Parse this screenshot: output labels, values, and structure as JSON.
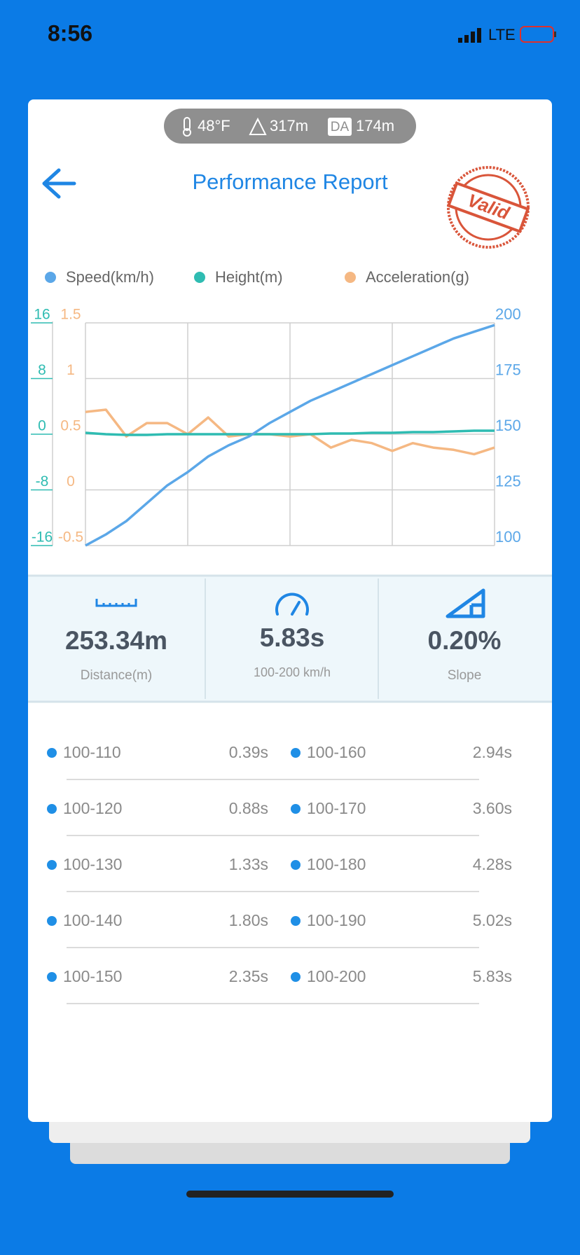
{
  "status_bar": {
    "time": "8:56",
    "network": "LTE"
  },
  "conditions": {
    "temperature": "48°F",
    "altitude": "317m",
    "da_label": "DA",
    "density_altitude": "174m"
  },
  "header": {
    "title": "Performance Report",
    "stamp": "Valid"
  },
  "chart_data": {
    "type": "line",
    "series": [
      {
        "name": "Speed(km/h)",
        "color": "#5ba7e8",
        "axis": "y2",
        "values": [
          100,
          105,
          111,
          119,
          127,
          133,
          140,
          145,
          149,
          155,
          160,
          165,
          169,
          173,
          177,
          181,
          185,
          189,
          193,
          196,
          199
        ]
      },
      {
        "name": "Height(m)",
        "color": "#2fbcb2",
        "values": [
          0.2,
          0,
          -0.1,
          -0.1,
          0,
          0,
          0,
          0,
          0,
          0,
          0,
          0,
          0.1,
          0.1,
          0.2,
          0.2,
          0.3,
          0.3,
          0.4,
          0.5,
          0.5
        ]
      },
      {
        "name": "Acceleration(g)",
        "color": "#f5b883",
        "axis": "y3",
        "values": [
          0.7,
          0.72,
          0.48,
          0.6,
          0.6,
          0.5,
          0.65,
          0.48,
          0.5,
          0.5,
          0.48,
          0.5,
          0.38,
          0.45,
          0.42,
          0.35,
          0.42,
          0.38,
          0.36,
          0.32,
          0.38
        ]
      }
    ],
    "ylim": [
      -16,
      16
    ],
    "yticks": [
      16,
      8,
      0,
      -8,
      -16
    ],
    "y3lim": [
      -0.5,
      1.5
    ],
    "y3ticks": [
      1.5,
      1,
      0.5,
      0,
      -0.5
    ],
    "y2lim": [
      100,
      200
    ],
    "y2ticks": [
      200,
      175,
      150,
      125,
      100
    ],
    "grid": true
  },
  "stats": [
    {
      "value": "253.34m",
      "label": "Distance(m)"
    },
    {
      "value": "5.83s",
      "label": "100-200 km/h"
    },
    {
      "value": "0.20%",
      "label": "Slope"
    }
  ],
  "splits": [
    {
      "range": "100-110",
      "time": "0.39s"
    },
    {
      "range": "100-160",
      "time": "2.94s"
    },
    {
      "range": "100-120",
      "time": "0.88s"
    },
    {
      "range": "100-170",
      "time": "3.60s"
    },
    {
      "range": "100-130",
      "time": "1.33s"
    },
    {
      "range": "100-180",
      "time": "4.28s"
    },
    {
      "range": "100-140",
      "time": "1.80s"
    },
    {
      "range": "100-190",
      "time": "5.02s"
    },
    {
      "range": "100-150",
      "time": "2.35s"
    },
    {
      "range": "100-200",
      "time": "5.83s"
    }
  ]
}
